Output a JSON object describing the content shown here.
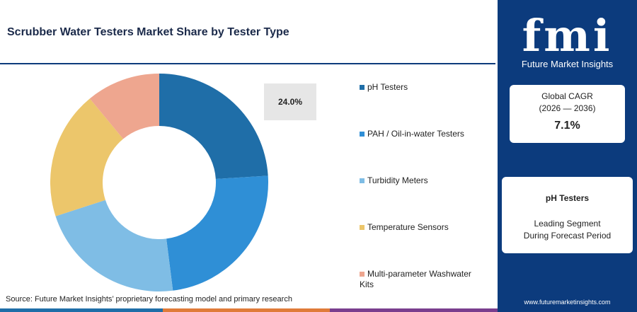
{
  "chart_data": {
    "type": "donut",
    "title": "Scrubber Water Testers Market Share by Tester Type",
    "categories": [
      "pH Testers",
      "PAH / Oil-in-water Testers",
      "Turbidity Meters",
      "Temperature Sensors",
      "Multi-parameter Washwater Kits"
    ],
    "values": [
      24,
      24,
      22,
      19,
      11
    ],
    "value_labels": [
      "24.0%",
      null,
      null,
      null,
      null
    ],
    "colors": [
      "#1f6ea8",
      "#2f8fd6",
      "#7fbde5",
      "#ecc66b",
      "#eea68f"
    ],
    "source": "Source: Future Market Insights’ proprietary forecasting model and primary research"
  },
  "sidebar": {
    "brand": "fmi",
    "brand_name": "Future Market Insights",
    "cagr_label": "Global CAGR",
    "cagr_period": "(2026 — 2036)",
    "cagr_value": "7.1%",
    "segment": "pH Testers",
    "segment_caption_1": "Leading Segment",
    "segment_caption_2": "During Forecast Period",
    "url": "www.futuremarketinsights.com"
  }
}
